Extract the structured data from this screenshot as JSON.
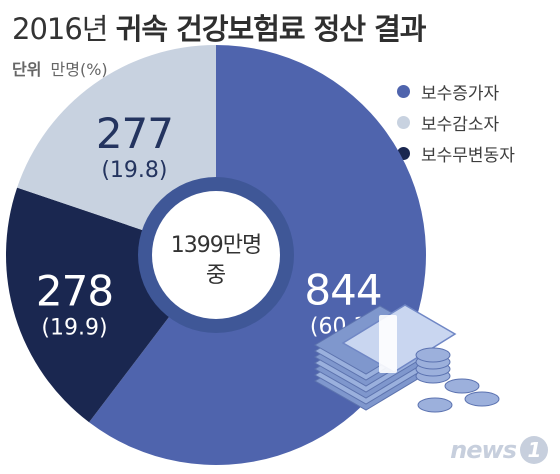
{
  "title": {
    "year": "2016년",
    "main": "귀속 건강보험료 정산 결과"
  },
  "unit": {
    "label": "단위",
    "value": "만명(%)"
  },
  "center": {
    "line1": "1399만명",
    "line2": "중"
  },
  "watermark": {
    "brand": "news",
    "badge": "1"
  },
  "chart_data": {
    "type": "pie",
    "title": "2016년 귀속 건강보험료 정산 결과",
    "unit": "만명(%)",
    "total_label": "1399만명 중",
    "legend_position": "right",
    "slices": [
      {
        "name": "보수증가자",
        "value": 844,
        "percent": 60.3,
        "value_label": "844",
        "percent_label": "(60.3)",
        "color": "#4f64ad",
        "text_color": "#ffffff"
      },
      {
        "name": "보수무변동자",
        "value": 278,
        "percent": 19.9,
        "value_label": "278",
        "percent_label": "(19.9)",
        "color": "#1a2750",
        "text_color": "#ffffff"
      },
      {
        "name": "보수감소자",
        "value": 277,
        "percent": 19.8,
        "value_label": "277",
        "percent_label": "(19.8)",
        "color": "#c8d2e0",
        "text_color": "#24345f"
      }
    ],
    "legend_order": [
      "보수증가자",
      "보수감소자",
      "보수무변동자"
    ]
  }
}
